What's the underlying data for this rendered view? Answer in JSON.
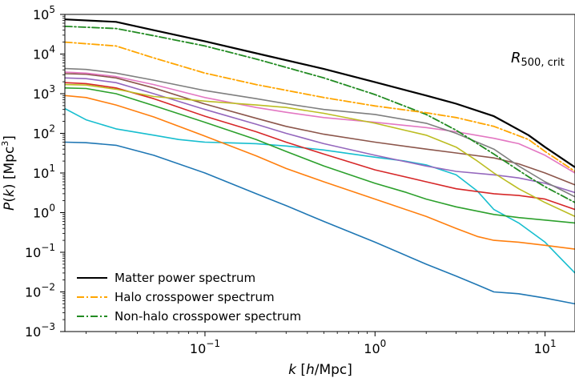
{
  "chart_data": {
    "type": "line",
    "xscale": "log",
    "yscale": "log",
    "xlim": [
      0.015,
      15
    ],
    "ylim": [
      0.001,
      100000
    ],
    "xlabel": "k [h/Mpc]",
    "xlabel_parts": {
      "var": "k",
      "unit_open": " [",
      "unit_italic": "h",
      "unit_rest": "/Mpc]"
    },
    "ylabel": "P(k) [Mpc^3]",
    "ylabel_parts": {
      "var": "P",
      "arg_open": "(",
      "arg": "k",
      "arg_close": ")",
      "unit": " [Mpc",
      "unit_sup": "3",
      "unit_close": "]"
    },
    "annotation": {
      "main": "R",
      "sub": "500, crit"
    },
    "x_ticks": [
      {
        "value": 0.1,
        "base": "10",
        "exp": "−1"
      },
      {
        "value": 1,
        "base": "10",
        "exp": "0"
      },
      {
        "value": 10,
        "base": "10",
        "exp": "1"
      }
    ],
    "y_ticks": [
      {
        "value": 0.001,
        "base": "10",
        "exp": "−3"
      },
      {
        "value": 0.01,
        "base": "10",
        "exp": "−2"
      },
      {
        "value": 0.1,
        "base": "10",
        "exp": "−1"
      },
      {
        "value": 1,
        "base": "10",
        "exp": "0"
      },
      {
        "value": 10,
        "base": "10",
        "exp": "1"
      },
      {
        "value": 100,
        "base": "10",
        "exp": "2"
      },
      {
        "value": 1000,
        "base": "10",
        "exp": "3"
      },
      {
        "value": 10000,
        "base": "10",
        "exp": "4"
      },
      {
        "value": 100000,
        "base": "10",
        "exp": "5"
      }
    ],
    "legend": {
      "placement": "lower-left",
      "entries": [
        {
          "label": "Matter power spectrum",
          "color": "#000000",
          "dash": "solid"
        },
        {
          "label": "Halo crosspower spectrum",
          "color": "#ffa500",
          "dash": "dashdot"
        },
        {
          "label": "Non-halo crosspower spectrum",
          "color": "#228b22",
          "dash": "dashdot"
        }
      ]
    },
    "series": [
      {
        "name": "Matter power spectrum",
        "color": "#000000",
        "dash": "solid",
        "width": 2.2,
        "x": [
          0.015,
          0.03,
          0.05,
          0.1,
          0.2,
          0.5,
          1,
          2,
          3,
          5,
          8,
          10,
          15
        ],
        "y": [
          75000,
          65000,
          40000,
          21000,
          10500,
          4200,
          1950,
          900,
          560,
          270,
          90,
          45,
          14
        ]
      },
      {
        "name": "Halo crosspower spectrum",
        "color": "#ffa500",
        "dash": "dashdot",
        "width": 1.8,
        "x": [
          0.015,
          0.03,
          0.05,
          0.1,
          0.2,
          0.5,
          1,
          2,
          3,
          5,
          8,
          10,
          15
        ],
        "y": [
          20000,
          16000,
          8000,
          3300,
          1700,
          800,
          490,
          330,
          250,
          150,
          70,
          35,
          11
        ]
      },
      {
        "name": "Non-halo crosspower spectrum",
        "color": "#228b22",
        "dash": "dashdot",
        "width": 1.8,
        "x": [
          0.015,
          0.03,
          0.05,
          0.1,
          0.2,
          0.5,
          1,
          2,
          3,
          5,
          8,
          10,
          15
        ],
        "y": [
          50000,
          44000,
          29000,
          16000,
          7500,
          2500,
          950,
          300,
          120,
          30,
          8,
          4.5,
          1.8
        ]
      },
      {
        "name": "cyan",
        "color": "#17becf",
        "dash": "solid",
        "width": 1.6,
        "x": [
          0.015,
          0.02,
          0.03,
          0.05,
          0.07,
          0.1,
          0.15,
          0.2,
          0.3,
          0.5,
          1,
          1.5,
          2,
          3,
          4,
          5,
          7,
          10,
          12,
          15
        ],
        "y": [
          420,
          220,
          130,
          90,
          70,
          60,
          57,
          55,
          48,
          38,
          25,
          20,
          16,
          9,
          3.5,
          1.2,
          0.55,
          0.18,
          0.08,
          0.03
        ]
      },
      {
        "name": "blue",
        "color": "#1f77b4",
        "dash": "solid",
        "width": 1.6,
        "x": [
          0.015,
          0.02,
          0.03,
          0.05,
          0.1,
          0.2,
          0.3,
          0.5,
          1,
          2,
          3,
          4,
          5,
          7,
          10,
          15
        ],
        "y": [
          60,
          58,
          50,
          28,
          10,
          3,
          1.5,
          0.6,
          0.18,
          0.05,
          0.025,
          0.015,
          0.01,
          0.009,
          0.007,
          0.005
        ]
      },
      {
        "name": "orange",
        "color": "#ff7f0e",
        "dash": "solid",
        "width": 1.6,
        "x": [
          0.015,
          0.02,
          0.03,
          0.05,
          0.1,
          0.2,
          0.3,
          0.5,
          1,
          2,
          3,
          4,
          5,
          7,
          10,
          15
        ],
        "y": [
          900,
          800,
          520,
          260,
          85,
          27,
          13,
          6,
          2.2,
          0.8,
          0.4,
          0.25,
          0.2,
          0.18,
          0.15,
          0.12
        ]
      },
      {
        "name": "green",
        "color": "#2ca02c",
        "dash": "solid",
        "width": 1.6,
        "x": [
          0.015,
          0.02,
          0.03,
          0.05,
          0.1,
          0.2,
          0.3,
          0.5,
          1,
          1.5,
          2,
          3,
          5,
          7,
          10,
          15
        ],
        "y": [
          1400,
          1350,
          1000,
          500,
          190,
          70,
          35,
          15,
          5.5,
          3.3,
          2.2,
          1.4,
          0.9,
          0.75,
          0.65,
          0.55
        ]
      },
      {
        "name": "red",
        "color": "#d62728",
        "dash": "solid",
        "width": 1.6,
        "x": [
          0.015,
          0.02,
          0.03,
          0.05,
          0.1,
          0.2,
          0.3,
          0.5,
          1,
          2,
          3,
          5,
          7,
          10,
          15
        ],
        "y": [
          1900,
          1800,
          1400,
          750,
          270,
          110,
          60,
          30,
          12,
          6,
          4,
          3,
          2.7,
          2.2,
          1.2
        ]
      },
      {
        "name": "purple",
        "color": "#9467bd",
        "dash": "solid",
        "width": 1.6,
        "x": [
          0.015,
          0.02,
          0.03,
          0.05,
          0.1,
          0.2,
          0.3,
          0.5,
          1,
          2,
          3,
          5,
          7,
          10,
          15
        ],
        "y": [
          2500,
          2400,
          1900,
          1000,
          400,
          170,
          100,
          55,
          28,
          15,
          11,
          9,
          7.5,
          5.5,
          3.2
        ]
      },
      {
        "name": "brown",
        "color": "#8c564b",
        "dash": "solid",
        "width": 1.6,
        "x": [
          0.015,
          0.02,
          0.03,
          0.05,
          0.1,
          0.2,
          0.3,
          0.5,
          1,
          2,
          3,
          5,
          7,
          10,
          15
        ],
        "y": [
          3200,
          3100,
          2500,
          1400,
          550,
          240,
          150,
          95,
          60,
          40,
          32,
          24,
          17,
          10,
          5
        ]
      },
      {
        "name": "pink",
        "color": "#e377c2",
        "dash": "solid",
        "width": 1.6,
        "x": [
          0.015,
          0.02,
          0.03,
          0.05,
          0.1,
          0.2,
          0.3,
          0.5,
          1,
          2,
          3,
          5,
          7,
          10,
          15
        ],
        "y": [
          3500,
          3300,
          2700,
          1700,
          800,
          450,
          340,
          250,
          190,
          140,
          110,
          75,
          55,
          28,
          10
        ]
      },
      {
        "name": "gray",
        "color": "#7f7f7f",
        "dash": "solid",
        "width": 1.6,
        "x": [
          0.015,
          0.02,
          0.03,
          0.05,
          0.1,
          0.2,
          0.3,
          0.5,
          1,
          2,
          3,
          5,
          7,
          10,
          15
        ],
        "y": [
          4300,
          4100,
          3300,
          2200,
          1200,
          750,
          560,
          400,
          300,
          180,
          100,
          40,
          15,
          6,
          2.5
        ]
      },
      {
        "name": "olive",
        "color": "#bcbd22",
        "dash": "solid",
        "width": 1.6,
        "x": [
          0.015,
          0.02,
          0.03,
          0.05,
          0.1,
          0.2,
          0.3,
          0.5,
          1,
          2,
          3,
          4,
          5,
          7,
          10,
          15
        ],
        "y": [
          1700,
          1650,
          1300,
          850,
          650,
          520,
          450,
          320,
          180,
          90,
          45,
          20,
          10,
          4,
          1.8,
          0.8
        ]
      }
    ]
  }
}
